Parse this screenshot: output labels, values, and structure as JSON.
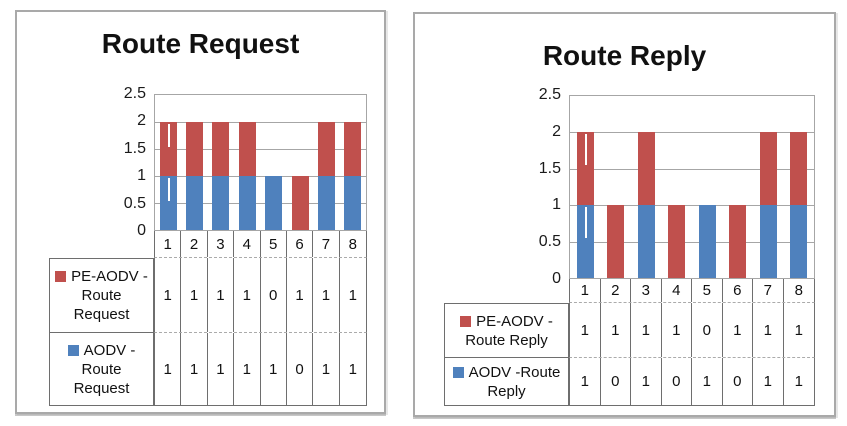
{
  "page": {
    "background": "#FFFFFF"
  },
  "colors": {
    "series_red": "#C0504D",
    "series_blue": "#4F81BD",
    "plot_line": "#A6A6A6",
    "table_line": "#6E6E6E",
    "dashed_line": "#ABABAB",
    "panel_border": "#A9A9A9"
  },
  "chart_data": [
    {
      "type": "bar",
      "stacked": true,
      "title": "Route Request",
      "categories": [
        "1",
        "2",
        "3",
        "4",
        "5",
        "6",
        "7",
        "8"
      ],
      "series": [
        {
          "name": "PE-AODV - Route Request",
          "legend_lines": [
            "PE-AODV -",
            "Route",
            "Request"
          ],
          "color": "#C0504D",
          "values": [
            1,
            1,
            1,
            1,
            0,
            1,
            1,
            1
          ]
        },
        {
          "name": "AODV - Route Request",
          "legend_lines": [
            "AODV -",
            "Route",
            "Request"
          ],
          "color": "#4F81BD",
          "values": [
            1,
            1,
            1,
            1,
            1,
            0,
            1,
            1
          ]
        }
      ],
      "ylim": [
        0,
        2.5
      ],
      "y_ticks": [
        "2.5",
        "2",
        "1.5",
        "1",
        "0.5",
        "0"
      ],
      "xlabel": "",
      "ylabel": "",
      "grid": true,
      "legend_position": "left-of-data-table",
      "data_table_shown": true,
      "error_bar_whisker_on_category": "1"
    },
    {
      "type": "bar",
      "stacked": true,
      "title": "Route Reply",
      "categories": [
        "1",
        "2",
        "3",
        "4",
        "5",
        "6",
        "7",
        "8"
      ],
      "series": [
        {
          "name": "PE-AODV - Route Reply",
          "legend_lines": [
            "PE-AODV -",
            "Route Reply"
          ],
          "color": "#C0504D",
          "values": [
            1,
            1,
            1,
            1,
            0,
            1,
            1,
            1
          ]
        },
        {
          "name": "AODV -Route Reply",
          "legend_lines": [
            "AODV -Route",
            "Reply"
          ],
          "color": "#4F81BD",
          "values": [
            1,
            0,
            1,
            0,
            1,
            0,
            1,
            1
          ]
        }
      ],
      "ylim": [
        0,
        2.5
      ],
      "y_ticks": [
        "2.5",
        "2",
        "1.5",
        "1",
        "0.5",
        "0"
      ],
      "xlabel": "",
      "ylabel": "",
      "grid": true,
      "legend_position": "left-of-data-table",
      "data_table_shown": true,
      "error_bar_whisker_on_category": "1"
    }
  ]
}
